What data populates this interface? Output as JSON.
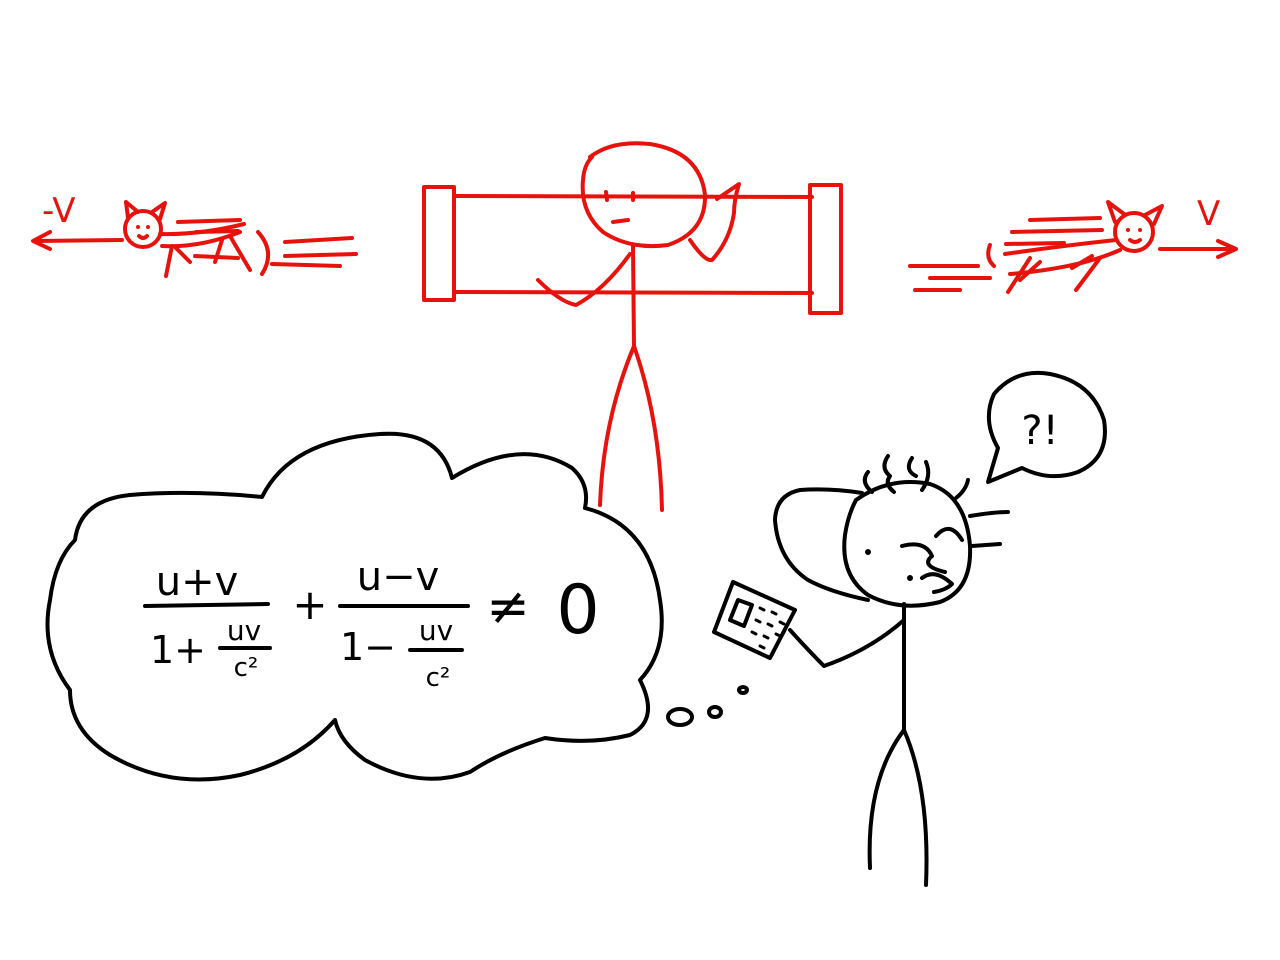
{
  "labels": {
    "left_velocity": "-V",
    "right_velocity": "V",
    "speech": "?!"
  },
  "equation": {
    "term1_num": "u+v",
    "term1_den_lead": "1+",
    "term1_den_frac_num": "uv",
    "term1_den_frac_den": "c²",
    "plus": "+",
    "term2_num": "u−v",
    "term2_den_lead": "1−",
    "term2_den_frac_num": "uv",
    "term2_den_frac_den": "c²",
    "relation": "≠",
    "rhs": "0"
  },
  "colors": {
    "moving_frame": "#e8120c",
    "observer": "#000000"
  },
  "icons": [
    "cat-icon",
    "train-car",
    "stick-figure",
    "thought-cloud",
    "speech-bubble",
    "calculator-icon"
  ]
}
